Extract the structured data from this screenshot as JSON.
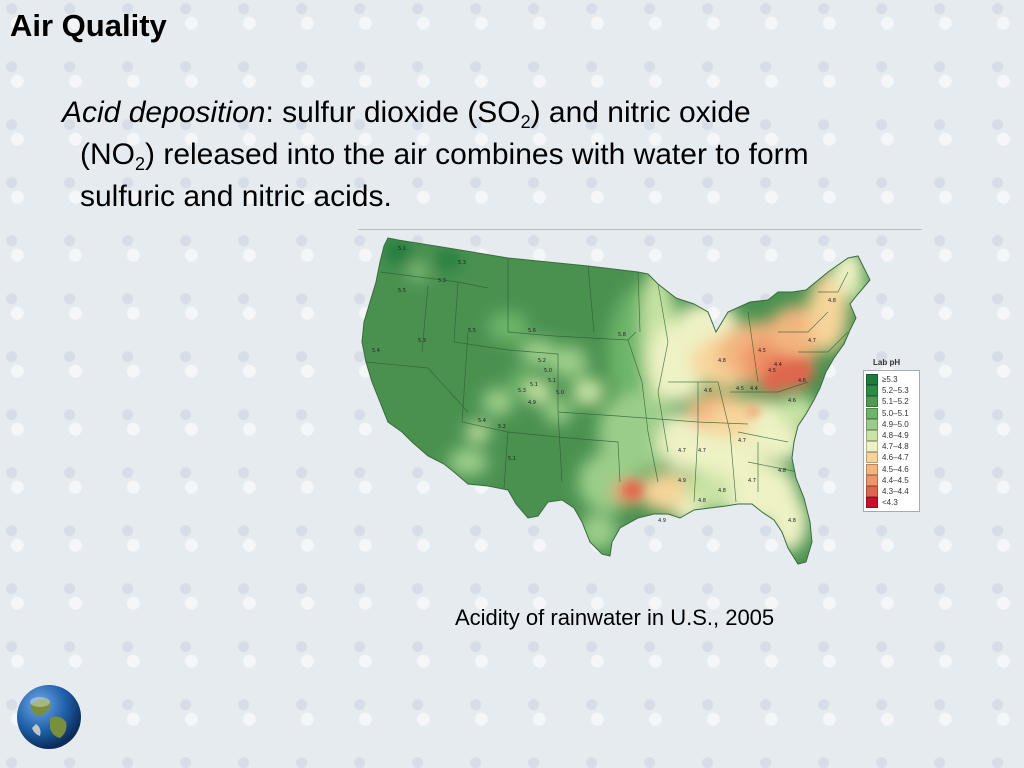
{
  "slide": {
    "title": "Air Quality",
    "term": "Acid deposition",
    "line1_rest": ": sulfur dioxide (SO",
    "sub1": "2",
    "line1_end": ") and nitric oxide",
    "line2_start": "(NO",
    "sub2": "2",
    "line2_end": ") released into the air combines with water to form",
    "line3": "sulfuric and nitric acids.",
    "caption": "Acidity of rainwater in U.S., 2005"
  },
  "legend": {
    "title": "Lab pH",
    "items": [
      {
        "label": "≥5.3",
        "color": "#1f7a3e"
      },
      {
        "label": "5.2–5.3",
        "color": "#2e8b47"
      },
      {
        "label": "5.1–5.2",
        "color": "#4e9a54"
      },
      {
        "label": "5.0–5.1",
        "color": "#6db56a"
      },
      {
        "label": "4.9–5.0",
        "color": "#9bcd8a"
      },
      {
        "label": "4.8–4.9",
        "color": "#c8e3a4"
      },
      {
        "label": "4.7–4.8",
        "color": "#eef2c4"
      },
      {
        "label": "4.6–4.7",
        "color": "#f7d49a"
      },
      {
        "label": "4.5–4.6",
        "color": "#f3b57f"
      },
      {
        "label": "4.4–4.5",
        "color": "#ee9468"
      },
      {
        "label": "4.3–4.4",
        "color": "#e0664e"
      },
      {
        "label": "<4.3",
        "color": "#c8102e"
      }
    ]
  },
  "map": {
    "base_color": "#4a9150",
    "border_color": "#2d5e33",
    "value_labels": [
      {
        "text": "5.1"
      },
      {
        "text": "5.3"
      },
      {
        "text": "5.5"
      },
      {
        "text": "5.4"
      },
      {
        "text": "5.3"
      },
      {
        "text": "5.5"
      },
      {
        "text": "5.6"
      },
      {
        "text": "5.3"
      },
      {
        "text": "5.2"
      },
      {
        "text": "5.0"
      },
      {
        "text": "5.1"
      },
      {
        "text": "5.4"
      },
      {
        "text": "5.2"
      },
      {
        "text": "5.1"
      },
      {
        "text": "5.8"
      },
      {
        "text": "5.3"
      },
      {
        "text": "4.9"
      },
      {
        "text": "5.1"
      },
      {
        "text": "5.0"
      },
      {
        "text": "4.7"
      },
      {
        "text": "4.8"
      },
      {
        "text": "4.6"
      },
      {
        "text": "4.5"
      },
      {
        "text": "4.4"
      },
      {
        "text": "4.5"
      },
      {
        "text": "4.6"
      },
      {
        "text": "4.7"
      },
      {
        "text": "4.8"
      },
      {
        "text": "4.9"
      },
      {
        "text": "4.7"
      },
      {
        "text": "4.8"
      },
      {
        "text": "4.5"
      },
      {
        "text": "4.4"
      },
      {
        "text": "4.7"
      },
      {
        "text": "4.6"
      },
      {
        "text": "4.8"
      },
      {
        "text": "4.7"
      },
      {
        "text": "4.8"
      },
      {
        "text": "4.9"
      },
      {
        "text": "4.8"
      }
    ]
  },
  "globe": {
    "icon": "earth-globe-icon",
    "ocean": "#1f5fa8",
    "land": "#7a8f3c"
  }
}
